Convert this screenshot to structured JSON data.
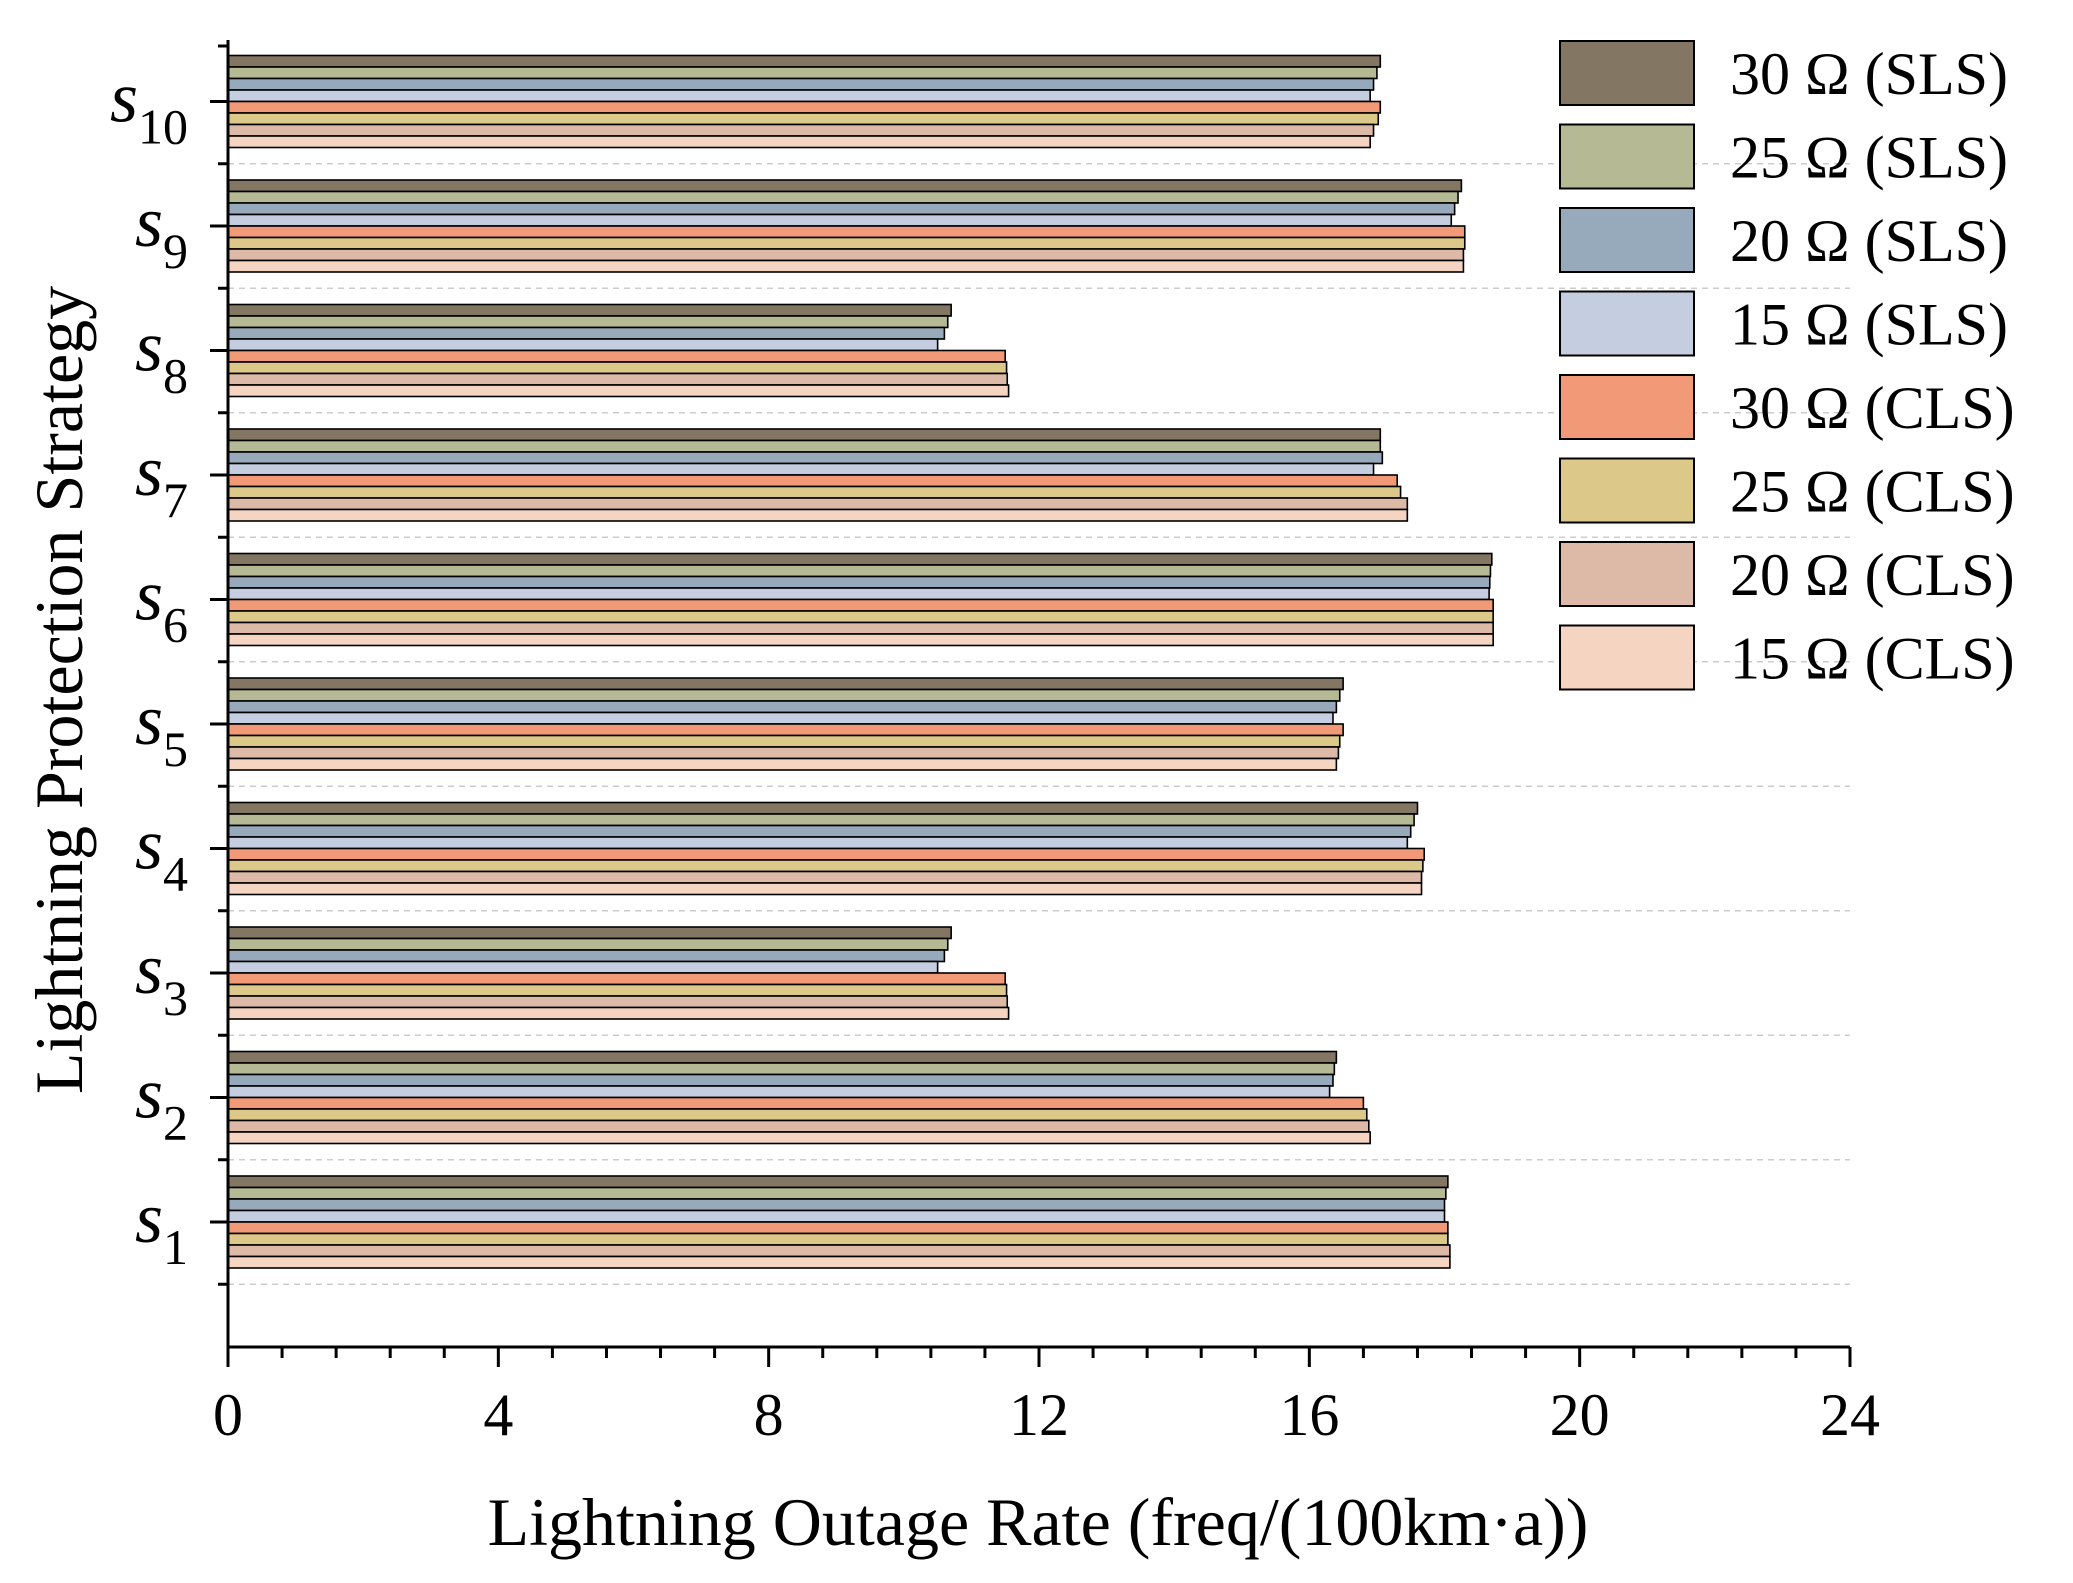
{
  "chart_data": {
    "type": "bar",
    "orientation": "horizontal",
    "xlabel": "Lightning Outage Rate (freq/(100km·a))",
    "ylabel": "Lightning Protection Strategy",
    "xlim": [
      0,
      24
    ],
    "xticks": [
      "0",
      "4",
      "8",
      "12",
      "16",
      "20",
      "24"
    ],
    "categories": [
      {
        "base": "s",
        "sub": "1"
      },
      {
        "base": "s",
        "sub": "2"
      },
      {
        "base": "s",
        "sub": "3"
      },
      {
        "base": "s",
        "sub": "4"
      },
      {
        "base": "s",
        "sub": "5"
      },
      {
        "base": "s",
        "sub": "6"
      },
      {
        "base": "s",
        "sub": "7"
      },
      {
        "base": "s",
        "sub": "8"
      },
      {
        "base": "s",
        "sub": "9"
      },
      {
        "base": "s",
        "sub": "10"
      }
    ],
    "series": [
      {
        "name": "30 Ω (SLS)",
        "color": "#837662",
        "values": [
          18.05,
          16.4,
          10.7,
          17.6,
          16.5,
          18.7,
          17.05,
          10.7,
          18.25,
          17.05
        ]
      },
      {
        "name": "25 Ω (SLS)",
        "color": "#b5b994",
        "values": [
          18.02,
          16.37,
          10.65,
          17.55,
          16.45,
          18.68,
          17.05,
          10.65,
          18.2,
          17.0
        ]
      },
      {
        "name": "20 Ω (SLS)",
        "color": "#97aabb",
        "values": [
          18.0,
          16.35,
          10.6,
          17.5,
          16.4,
          18.67,
          17.08,
          10.6,
          18.15,
          16.95
        ]
      },
      {
        "name": "15 Ω (SLS)",
        "color": "#c4cee0",
        "values": [
          18.0,
          16.3,
          10.5,
          17.45,
          16.35,
          18.66,
          16.95,
          10.5,
          18.1,
          16.9
        ]
      },
      {
        "name": "30 Ω (CLS)",
        "color": "#f29a77",
        "values": [
          18.05,
          16.8,
          11.5,
          17.7,
          16.5,
          18.72,
          17.3,
          11.5,
          18.3,
          17.05
        ]
      },
      {
        "name": "25 Ω (CLS)",
        "color": "#dcc888",
        "values": [
          18.05,
          16.85,
          11.52,
          17.68,
          16.45,
          18.72,
          17.35,
          11.52,
          18.3,
          17.02
        ]
      },
      {
        "name": "20 Ω (CLS)",
        "color": "#ddbaa8",
        "values": [
          18.08,
          16.88,
          11.53,
          17.66,
          16.43,
          18.72,
          17.45,
          11.53,
          18.28,
          16.95
        ]
      },
      {
        "name": "15 Ω (CLS)",
        "color": "#f6d4c2",
        "values": [
          18.08,
          16.9,
          11.55,
          17.66,
          16.4,
          18.72,
          17.45,
          11.55,
          18.28,
          16.9
        ]
      }
    ]
  }
}
